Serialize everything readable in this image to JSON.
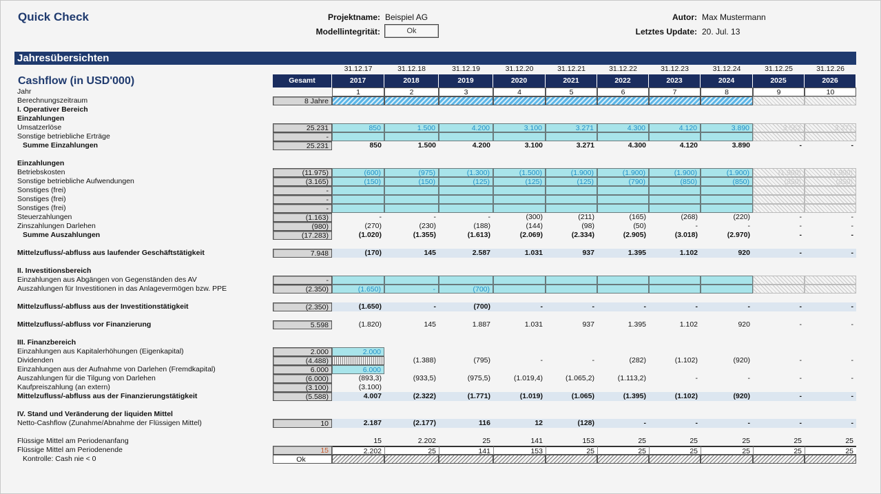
{
  "header": {
    "title": "Quick Check",
    "project_label": "Projektname:",
    "project_value": "Beispiel AG",
    "integrity_label": "Modellintegrität:",
    "integrity_value": "Ok",
    "author_label": "Autor:",
    "author_value": "Max Mustermann",
    "update_label": "Letztes Update:",
    "update_value": "20. Jul. 13"
  },
  "section_bar": "Jahresübersichten",
  "table_title": "Cashflow (in USD'000)",
  "total_header": "Gesamt",
  "dates": [
    "31.12.17",
    "31.12.18",
    "31.12.19",
    "31.12.20",
    "31.12.21",
    "31.12.22",
    "31.12.23",
    "31.12.24",
    "31.12.25",
    "31.12.26"
  ],
  "years": [
    "2017",
    "2018",
    "2019",
    "2020",
    "2021",
    "2022",
    "2023",
    "2024",
    "2025",
    "2026"
  ],
  "rows": [
    {
      "label": "Jahr",
      "kind": "year",
      "vals": [
        "1",
        "2",
        "3",
        "4",
        "5",
        "6",
        "7",
        "8",
        "9",
        "10"
      ]
    },
    {
      "label": "Berechnungszeitraum",
      "gesamt": "8 Jahre",
      "kind": "period",
      "vals": []
    },
    {
      "label": "I. Operativer Bereich",
      "kind": "section",
      "bold": true
    },
    {
      "label": "Einzahlungen",
      "kind": "section",
      "bold": true
    },
    {
      "label": "Umsatzerlöse",
      "gesamt": "25.231",
      "kind": "input",
      "vals": [
        "850",
        "1.500",
        "4.200",
        "3.100",
        "3.271",
        "4.300",
        "4.120",
        "3.890",
        "3.562",
        "3.271"
      ]
    },
    {
      "label": "Sonstige betriebliche Erträge",
      "gesamt": "-",
      "kind": "input",
      "vals": []
    },
    {
      "label": "Summe Einzahlungen",
      "gesamt": "25.231",
      "kind": "plain",
      "bold": true,
      "indent": true,
      "vals": [
        "850",
        "1.500",
        "4.200",
        "3.100",
        "3.271",
        "4.300",
        "4.120",
        "3.890",
        "-",
        "-"
      ]
    },
    {
      "kind": "blank"
    },
    {
      "label": "Einzahlungen",
      "kind": "section",
      "bold": true
    },
    {
      "label": "Betriebskosten",
      "gesamt": "(11.975)",
      "kind": "input",
      "vals": [
        "(600)",
        "(975)",
        "(1.300)",
        "(1.500)",
        "(1.900)",
        "(1.900)",
        "(1.900)",
        "(1.900)",
        "(1.900)",
        "(1.900)"
      ]
    },
    {
      "label": "Sonstige betriebliche Aufwendungen",
      "gesamt": "(3.165)",
      "kind": "input",
      "vals": [
        "(150)",
        "(150)",
        "(125)",
        "(125)",
        "(125)",
        "(790)",
        "(850)",
        "(850)",
        "(850)",
        "(850)"
      ]
    },
    {
      "label": "Sonstiges (frei)",
      "gesamt": "-",
      "kind": "input",
      "vals": []
    },
    {
      "label": "Sonstiges (frei)",
      "gesamt": "-",
      "kind": "input",
      "vals": []
    },
    {
      "label": "Sonstiges (frei)",
      "gesamt": "-",
      "kind": "input",
      "vals": []
    },
    {
      "label": "Steuerzahlungen",
      "gesamt": "(1.163)",
      "kind": "plain",
      "vals": [
        "-",
        "-",
        "-",
        "(300)",
        "(211)",
        "(165)",
        "(268)",
        "(220)",
        "-",
        "-"
      ]
    },
    {
      "label": "Zinszahlungen Darlehen",
      "gesamt": "(980)",
      "kind": "plain",
      "vals": [
        "(270)",
        "(230)",
        "(188)",
        "(144)",
        "(98)",
        "(50)",
        "-",
        "-",
        "-",
        "-"
      ]
    },
    {
      "label": "Summe Auszahlungen",
      "gesamt": "(17.283)",
      "kind": "plain",
      "bold": true,
      "indent": true,
      "vals": [
        "(1.020)",
        "(1.355)",
        "(1.613)",
        "(2.069)",
        "(2.334)",
        "(2.905)",
        "(3.018)",
        "(2.970)",
        "-",
        "-"
      ]
    },
    {
      "kind": "blank"
    },
    {
      "label": "Mittelzufluss/-abfluss aus laufender Geschäftstätigkeit",
      "gesamt": "7.948",
      "kind": "band",
      "bold": true,
      "vals": [
        "(170)",
        "145",
        "2.587",
        "1.031",
        "937",
        "1.395",
        "1.102",
        "920",
        "-",
        "-"
      ]
    },
    {
      "kind": "blank"
    },
    {
      "label": "II. Investitionsbereich",
      "kind": "section",
      "bold": true
    },
    {
      "label": "Einzahlungen aus Abgängen von Gegenständen des AV",
      "gesamt": "-",
      "kind": "input",
      "vals": []
    },
    {
      "label": "Auszahlungen für Investitionen in das Anlagevermögen bzw. PPE",
      "gesamt": "(2.350)",
      "kind": "input",
      "vals": [
        "(1.650)",
        "-",
        "(700)"
      ]
    },
    {
      "kind": "blank"
    },
    {
      "label": "Mittelzufluss/-abfluss aus der Investitionstätigkeit",
      "gesamt": "(2.350)",
      "kind": "band",
      "bold": true,
      "vals": [
        "(1.650)",
        "-",
        "(700)",
        "-",
        "-",
        "-",
        "-",
        "-",
        "-",
        "-"
      ]
    },
    {
      "kind": "blank"
    },
    {
      "label": "Mittelzufluss/-abfluss vor Finanzierung",
      "gesamt": "5.598",
      "kind": "plain",
      "labelbold": true,
      "vals": [
        "(1.820)",
        "145",
        "1.887",
        "1.031",
        "937",
        "1.395",
        "1.102",
        "920",
        "-",
        "-"
      ]
    },
    {
      "kind": "blank"
    },
    {
      "label": "III. Finanzbereich",
      "kind": "section",
      "bold": true
    },
    {
      "label": "Einzahlungen aus Kapitalerhöhungen (Eigenkapital)",
      "gesamt": "2.000",
      "kind": "input1",
      "vals": [
        "2.000"
      ]
    },
    {
      "label": "Dividenden",
      "gesamt": "(4.488)",
      "kind": "dotted1",
      "vals": [
        "",
        "(1.388)",
        "(795)",
        "-",
        "-",
        "(282)",
        "(1.102)",
        "(920)",
        "-",
        "-"
      ]
    },
    {
      "label": "Einzahlungen aus der Aufnahme von Darlehen (Fremdkapital)",
      "gesamt": "6.000",
      "kind": "input1",
      "vals": [
        "6.000"
      ]
    },
    {
      "label": "Auszahlungen für die Tilgung von Darlehen",
      "gesamt": "(6.000)",
      "kind": "plain",
      "vals": [
        "(893,3)",
        "(933,5)",
        "(975,5)",
        "(1.019,4)",
        "(1.065,2)",
        "(1.113,2)",
        "-",
        "-",
        "-",
        "-"
      ]
    },
    {
      "label": "Kaufpreiszahlung (an extern)",
      "gesamt": "(3.100)",
      "kind": "plain",
      "vals": [
        "(3.100)"
      ]
    },
    {
      "label": "Mittelzufluss/-abfluss aus der Finanzierungstätigkeit",
      "gesamt": "(5.588)",
      "kind": "band",
      "bold": true,
      "vals": [
        "4.007",
        "(2.322)",
        "(1.771)",
        "(1.019)",
        "(1.065)",
        "(1.395)",
        "(1.102)",
        "(920)",
        "-",
        "-"
      ]
    },
    {
      "kind": "blank"
    },
    {
      "label": "IV. Stand und Veränderung der liquiden Mittel",
      "kind": "section",
      "bold": true
    },
    {
      "label": "Netto-Cashflow (Zunahme/Abnahme der Flüssigen Mittel)",
      "gesamt": "10",
      "kind": "band",
      "valbold": true,
      "vals": [
        "2.187",
        "(2.177)",
        "116",
        "12",
        "(128)",
        "-",
        "-",
        "-",
        "-",
        "-"
      ]
    },
    {
      "kind": "blank"
    },
    {
      "label": "Flüssige Mittel am Periodenanfang",
      "kind": "plain",
      "vals": [
        "15",
        "2.202",
        "25",
        "141",
        "153",
        "25",
        "25",
        "25",
        "25",
        "25"
      ]
    },
    {
      "label": "Flüssige Mittel am Periodenende",
      "gesamt": "15",
      "gesamt_color": "#c8582a",
      "kind": "end",
      "vals": [
        "2.202",
        "25",
        "141",
        "153",
        "25",
        "25",
        "25",
        "25",
        "25",
        "25"
      ]
    },
    {
      "label": "Kontrolle: Cash nie < 0",
      "gesamt": "Ok",
      "gesamt_white": true,
      "indent": true,
      "kind": "check",
      "vals": []
    }
  ]
}
